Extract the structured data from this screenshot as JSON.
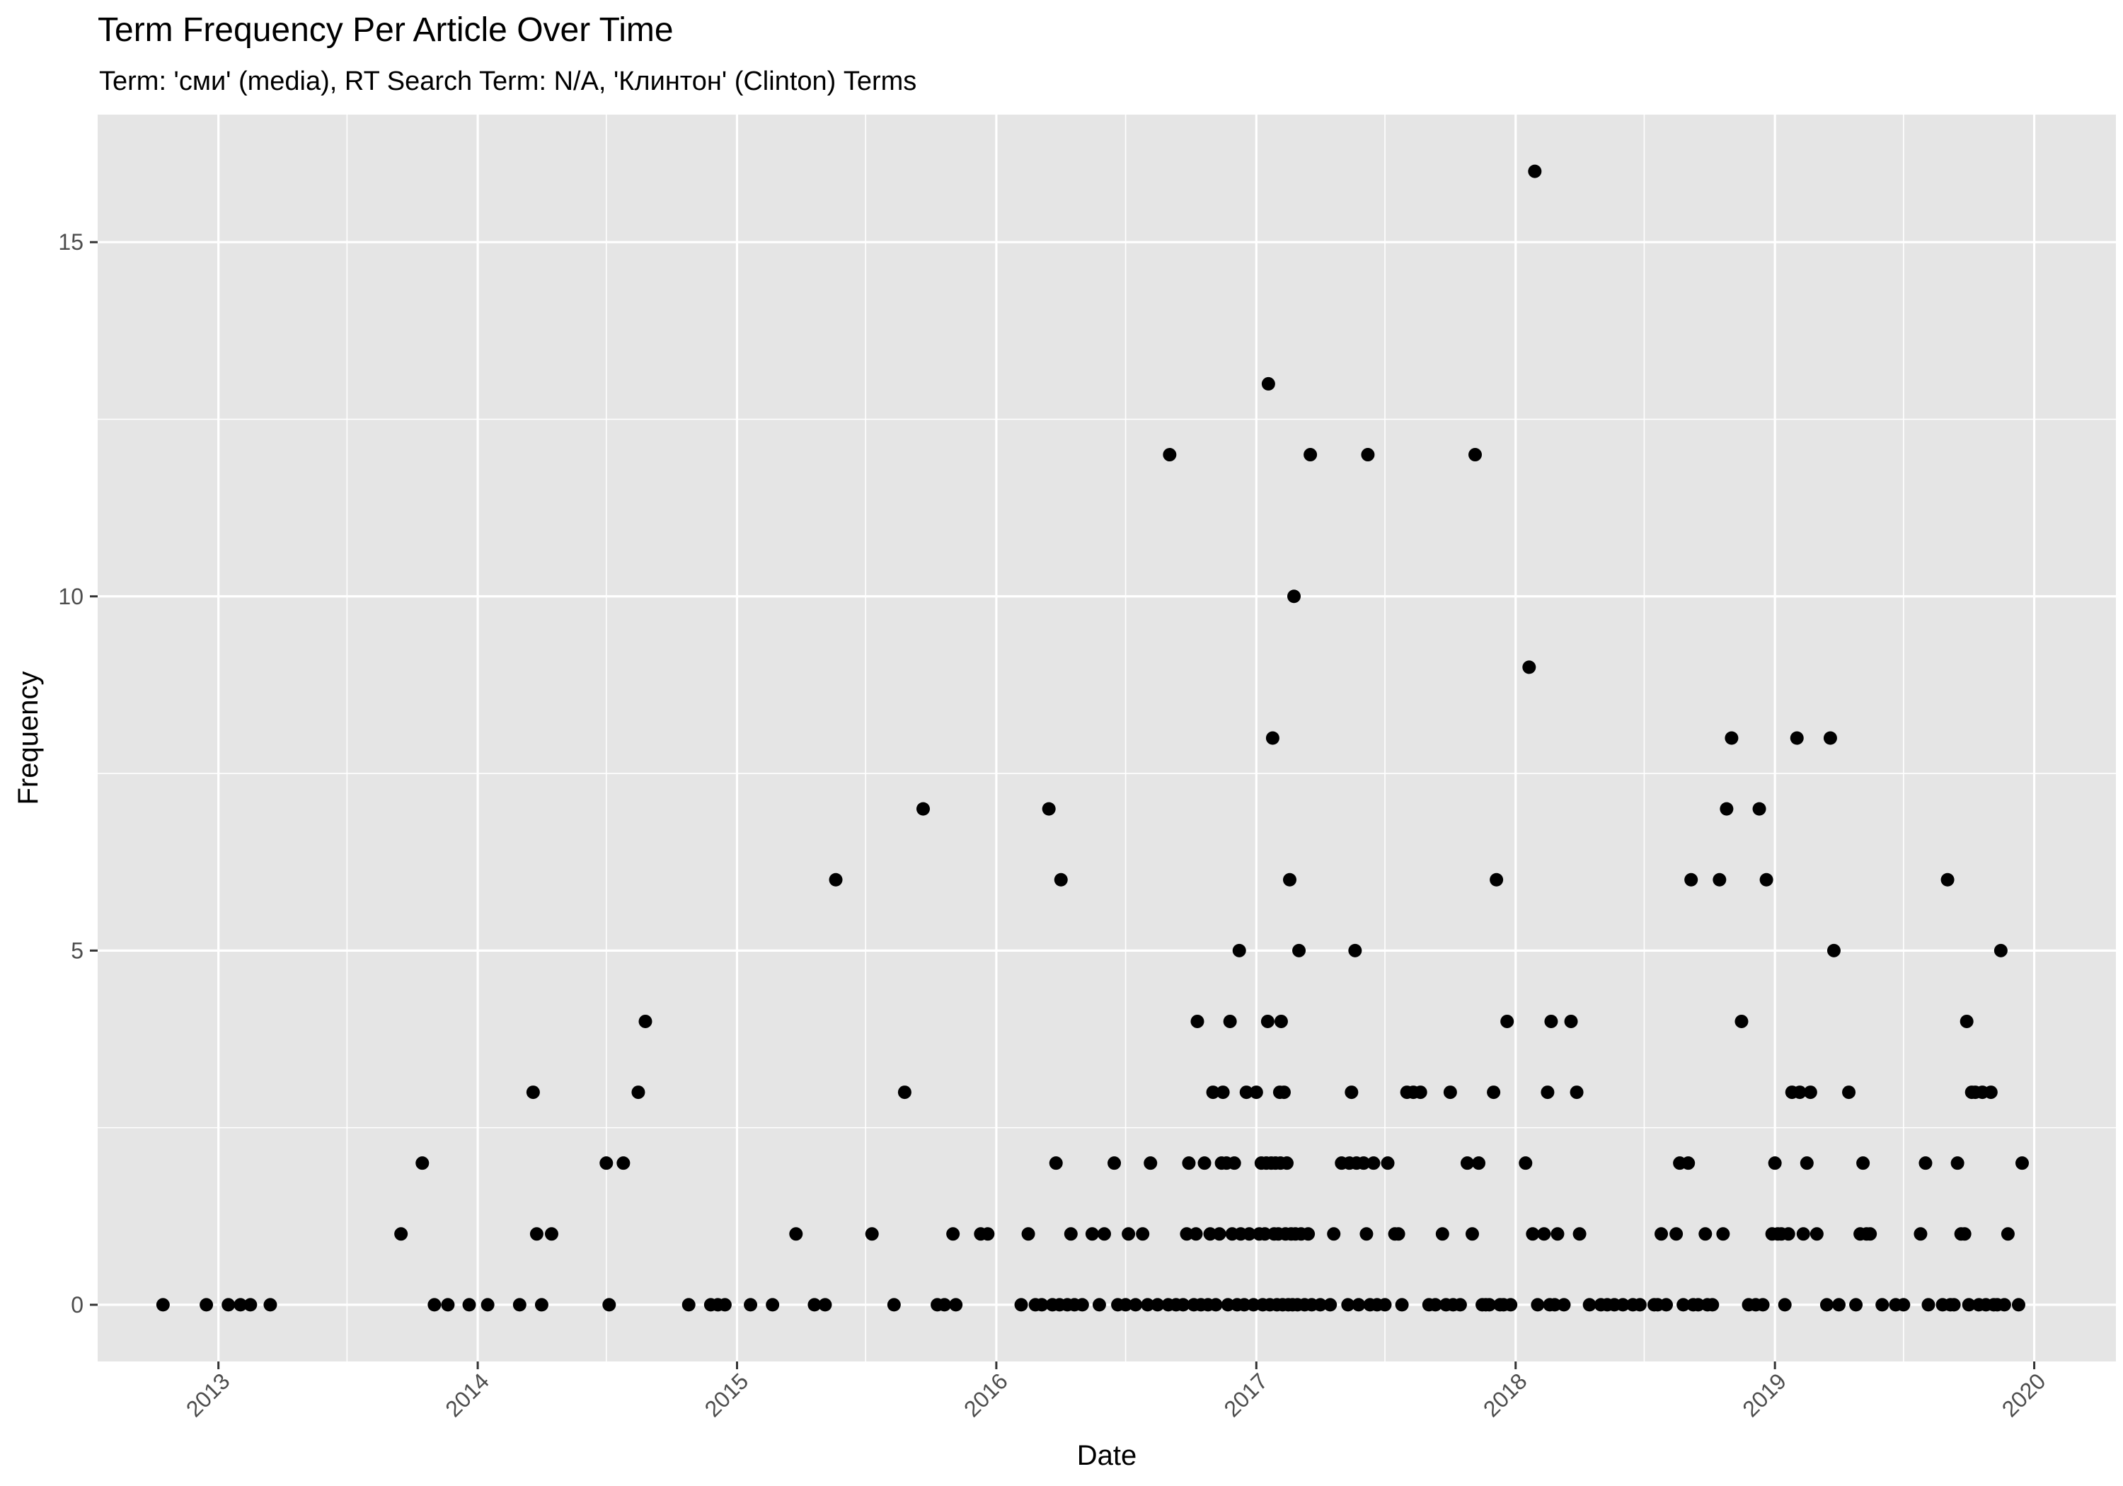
{
  "chart_data": {
    "type": "scatter",
    "title": "Term Frequency Per Article Over Time",
    "subtitle": "Term: 'сми' (media), RT Search Term: N/A, 'Клинтон' (Clinton) Terms",
    "xlabel": "Date",
    "ylabel": "Frequency",
    "x_type": "date",
    "xlim": [
      "2012-07-15",
      "2020-04-25"
    ],
    "ylim": [
      -0.8,
      16.8
    ],
    "x_ticks": [
      "2013",
      "2014",
      "2015",
      "2016",
      "2017",
      "2018",
      "2019",
      "2020"
    ],
    "y_ticks": [
      0,
      5,
      10,
      15
    ],
    "grid": true,
    "legend": "none",
    "background_color": "#e5e5e5",
    "point_color": "#000000",
    "points": [
      [
        "2012-10-15",
        0
      ],
      [
        "2012-12-15",
        0
      ],
      [
        "2013-01-15",
        0
      ],
      [
        "2013-02-01",
        0
      ],
      [
        "2013-02-15",
        0
      ],
      [
        "2013-03-15",
        0
      ],
      [
        "2013-09-15",
        1
      ],
      [
        "2013-10-15",
        2
      ],
      [
        "2013-11-01",
        0
      ],
      [
        "2013-11-20",
        0
      ],
      [
        "2013-12-20",
        0
      ],
      [
        "2014-01-15",
        0
      ],
      [
        "2014-03-01",
        0
      ],
      [
        "2014-03-20",
        3
      ],
      [
        "2014-03-25",
        1
      ],
      [
        "2014-04-01",
        0
      ],
      [
        "2014-04-15",
        1
      ],
      [
        "2014-07-01",
        2
      ],
      [
        "2014-07-05",
        0
      ],
      [
        "2014-07-25",
        2
      ],
      [
        "2014-08-15",
        3
      ],
      [
        "2014-08-25",
        4
      ],
      [
        "2014-10-25",
        0
      ],
      [
        "2014-11-25",
        0
      ],
      [
        "2014-12-05",
        0
      ],
      [
        "2014-12-15",
        0
      ],
      [
        "2015-01-20",
        0
      ],
      [
        "2015-02-20",
        0
      ],
      [
        "2015-03-25",
        1
      ],
      [
        "2015-04-20",
        0
      ],
      [
        "2015-05-05",
        0
      ],
      [
        "2015-05-20",
        6
      ],
      [
        "2015-07-10",
        1
      ],
      [
        "2015-08-10",
        0
      ],
      [
        "2015-08-25",
        3
      ],
      [
        "2015-09-20",
        7
      ],
      [
        "2015-10-10",
        0
      ],
      [
        "2015-10-20",
        0
      ],
      [
        "2015-11-01",
        1
      ],
      [
        "2015-11-05",
        0
      ],
      [
        "2015-12-10",
        1
      ],
      [
        "2015-12-20",
        1
      ],
      [
        "2016-02-05",
        0
      ],
      [
        "2016-02-15",
        1
      ],
      [
        "2016-02-25",
        0
      ],
      [
        "2016-03-05",
        0
      ],
      [
        "2016-03-15",
        7
      ],
      [
        "2016-03-20",
        0
      ],
      [
        "2016-03-25",
        2
      ],
      [
        "2016-03-30",
        0
      ],
      [
        "2016-04-01",
        6
      ],
      [
        "2016-04-10",
        0
      ],
      [
        "2016-04-15",
        1
      ],
      [
        "2016-04-20",
        0
      ],
      [
        "2016-05-01",
        0
      ],
      [
        "2016-05-15",
        1
      ],
      [
        "2016-05-25",
        0
      ],
      [
        "2016-06-01",
        1
      ],
      [
        "2016-06-15",
        2
      ],
      [
        "2016-06-20",
        0
      ],
      [
        "2016-07-01",
        0
      ],
      [
        "2016-07-05",
        1
      ],
      [
        "2016-07-15",
        0
      ],
      [
        "2016-07-25",
        1
      ],
      [
        "2016-08-01",
        0
      ],
      [
        "2016-08-05",
        2
      ],
      [
        "2016-08-15",
        0
      ],
      [
        "2016-08-30",
        0
      ],
      [
        "2016-09-01",
        12
      ],
      [
        "2016-09-10",
        0
      ],
      [
        "2016-09-20",
        0
      ],
      [
        "2016-09-25",
        1
      ],
      [
        "2016-09-28",
        2
      ],
      [
        "2016-10-05",
        0
      ],
      [
        "2016-10-08",
        1
      ],
      [
        "2016-10-10",
        4
      ],
      [
        "2016-10-15",
        0
      ],
      [
        "2016-10-20",
        2
      ],
      [
        "2016-10-25",
        0
      ],
      [
        "2016-10-28",
        1
      ],
      [
        "2016-11-01",
        3
      ],
      [
        "2016-11-05",
        0
      ],
      [
        "2016-11-10",
        1
      ],
      [
        "2016-11-13",
        2
      ],
      [
        "2016-11-15",
        3
      ],
      [
        "2016-11-20",
        2
      ],
      [
        "2016-11-22",
        0
      ],
      [
        "2016-11-25",
        4
      ],
      [
        "2016-11-28",
        1
      ],
      [
        "2016-12-01",
        2
      ],
      [
        "2016-12-05",
        0
      ],
      [
        "2016-12-08",
        5
      ],
      [
        "2016-12-10",
        1
      ],
      [
        "2016-12-15",
        0
      ],
      [
        "2016-12-18",
        3
      ],
      [
        "2016-12-22",
        1
      ],
      [
        "2016-12-28",
        0
      ],
      [
        "2017-01-01",
        3
      ],
      [
        "2017-01-05",
        1
      ],
      [
        "2017-01-08",
        2
      ],
      [
        "2017-01-10",
        0
      ],
      [
        "2017-01-13",
        1
      ],
      [
        "2017-01-15",
        2
      ],
      [
        "2017-01-17",
        4
      ],
      [
        "2017-01-18",
        13
      ],
      [
        "2017-01-20",
        0
      ],
      [
        "2017-01-22",
        2
      ],
      [
        "2017-01-24",
        8
      ],
      [
        "2017-01-26",
        1
      ],
      [
        "2017-01-28",
        2
      ],
      [
        "2017-01-30",
        0
      ],
      [
        "2017-02-01",
        1
      ],
      [
        "2017-02-03",
        3
      ],
      [
        "2017-02-04",
        2
      ],
      [
        "2017-02-05",
        4
      ],
      [
        "2017-02-07",
        0
      ],
      [
        "2017-02-09",
        3
      ],
      [
        "2017-02-11",
        1
      ],
      [
        "2017-02-13",
        2
      ],
      [
        "2017-02-15",
        0
      ],
      [
        "2017-02-17",
        6
      ],
      [
        "2017-02-19",
        1
      ],
      [
        "2017-02-21",
        0
      ],
      [
        "2017-02-23",
        10
      ],
      [
        "2017-02-25",
        1
      ],
      [
        "2017-02-28",
        0
      ],
      [
        "2017-03-02",
        5
      ],
      [
        "2017-03-05",
        1
      ],
      [
        "2017-03-10",
        0
      ],
      [
        "2017-03-15",
        1
      ],
      [
        "2017-03-18",
        12
      ],
      [
        "2017-03-20",
        0
      ],
      [
        "2017-04-01",
        0
      ],
      [
        "2017-04-15",
        0
      ],
      [
        "2017-04-20",
        1
      ],
      [
        "2017-05-01",
        2
      ],
      [
        "2017-05-10",
        0
      ],
      [
        "2017-05-12",
        2
      ],
      [
        "2017-05-15",
        3
      ],
      [
        "2017-05-20",
        5
      ],
      [
        "2017-05-22",
        2
      ],
      [
        "2017-05-25",
        0
      ],
      [
        "2017-06-01",
        2
      ],
      [
        "2017-06-05",
        1
      ],
      [
        "2017-06-07",
        12
      ],
      [
        "2017-06-10",
        0
      ],
      [
        "2017-06-15",
        2
      ],
      [
        "2017-06-20",
        0
      ],
      [
        "2017-07-01",
        0
      ],
      [
        "2017-07-05",
        2
      ],
      [
        "2017-07-15",
        1
      ],
      [
        "2017-07-20",
        1
      ],
      [
        "2017-07-25",
        0
      ],
      [
        "2017-08-01",
        3
      ],
      [
        "2017-08-10",
        3
      ],
      [
        "2017-08-20",
        3
      ],
      [
        "2017-09-01",
        0
      ],
      [
        "2017-09-10",
        0
      ],
      [
        "2017-09-20",
        1
      ],
      [
        "2017-09-25",
        0
      ],
      [
        "2017-10-01",
        3
      ],
      [
        "2017-10-05",
        0
      ],
      [
        "2017-10-15",
        0
      ],
      [
        "2017-10-25",
        2
      ],
      [
        "2017-11-01",
        1
      ],
      [
        "2017-11-05",
        12
      ],
      [
        "2017-11-10",
        2
      ],
      [
        "2017-11-15",
        0
      ],
      [
        "2017-11-20",
        0
      ],
      [
        "2017-11-25",
        0
      ],
      [
        "2017-12-01",
        3
      ],
      [
        "2017-12-05",
        6
      ],
      [
        "2017-12-10",
        0
      ],
      [
        "2017-12-15",
        0
      ],
      [
        "2017-12-20",
        4
      ],
      [
        "2017-12-25",
        0
      ],
      [
        "2018-01-15",
        2
      ],
      [
        "2018-01-25",
        1
      ],
      [
        "2018-02-01",
        0
      ],
      [
        "2018-01-20",
        9
      ],
      [
        "2018-01-28",
        16
      ],
      [
        "2018-02-10",
        1
      ],
      [
        "2018-02-15",
        3
      ],
      [
        "2018-02-18",
        0
      ],
      [
        "2018-02-20",
        4
      ],
      [
        "2018-02-25",
        0
      ],
      [
        "2018-03-01",
        1
      ],
      [
        "2018-03-10",
        0
      ],
      [
        "2018-03-20",
        4
      ],
      [
        "2018-03-28",
        3
      ],
      [
        "2018-04-01",
        1
      ],
      [
        "2018-04-15",
        0
      ],
      [
        "2018-05-01",
        0
      ],
      [
        "2018-05-10",
        0
      ],
      [
        "2018-05-20",
        0
      ],
      [
        "2018-06-01",
        0
      ],
      [
        "2018-06-15",
        0
      ],
      [
        "2018-06-25",
        0
      ],
      [
        "2018-07-15",
        0
      ],
      [
        "2018-07-20",
        0
      ],
      [
        "2018-07-25",
        1
      ],
      [
        "2018-08-01",
        0
      ],
      [
        "2018-08-15",
        1
      ],
      [
        "2018-08-20",
        2
      ],
      [
        "2018-08-25",
        0
      ],
      [
        "2018-09-01",
        2
      ],
      [
        "2018-09-05",
        6
      ],
      [
        "2018-09-08",
        0
      ],
      [
        "2018-09-15",
        0
      ],
      [
        "2018-09-25",
        1
      ],
      [
        "2018-09-28",
        0
      ],
      [
        "2018-10-05",
        0
      ],
      [
        "2018-10-15",
        6
      ],
      [
        "2018-10-20",
        1
      ],
      [
        "2018-10-25",
        7
      ],
      [
        "2018-11-01",
        8
      ],
      [
        "2018-11-15",
        4
      ],
      [
        "2018-11-25",
        0
      ],
      [
        "2018-12-05",
        0
      ],
      [
        "2018-12-10",
        7
      ],
      [
        "2018-12-15",
        0
      ],
      [
        "2018-12-20",
        6
      ],
      [
        "2018-12-28",
        1
      ],
      [
        "2019-01-01",
        2
      ],
      [
        "2019-01-05",
        1
      ],
      [
        "2019-01-10",
        1
      ],
      [
        "2019-01-15",
        0
      ],
      [
        "2019-01-20",
        1
      ],
      [
        "2019-01-25",
        3
      ],
      [
        "2019-02-01",
        8
      ],
      [
        "2019-02-05",
        3
      ],
      [
        "2019-02-10",
        1
      ],
      [
        "2019-02-15",
        2
      ],
      [
        "2019-02-20",
        3
      ],
      [
        "2019-03-01",
        1
      ],
      [
        "2019-03-15",
        0
      ],
      [
        "2019-03-20",
        8
      ],
      [
        "2019-03-25",
        5
      ],
      [
        "2019-04-01",
        0
      ],
      [
        "2019-04-15",
        3
      ],
      [
        "2019-04-25",
        0
      ],
      [
        "2019-05-01",
        1
      ],
      [
        "2019-05-05",
        2
      ],
      [
        "2019-05-10",
        1
      ],
      [
        "2019-05-15",
        1
      ],
      [
        "2019-06-01",
        0
      ],
      [
        "2019-06-20",
        0
      ],
      [
        "2019-07-01",
        0
      ],
      [
        "2019-07-25",
        1
      ],
      [
        "2019-08-01",
        2
      ],
      [
        "2019-08-05",
        0
      ],
      [
        "2019-08-25",
        0
      ],
      [
        "2019-09-01",
        6
      ],
      [
        "2019-09-05",
        0
      ],
      [
        "2019-09-10",
        0
      ],
      [
        "2019-09-15",
        2
      ],
      [
        "2019-09-20",
        1
      ],
      [
        "2019-09-25",
        1
      ],
      [
        "2019-09-28",
        4
      ],
      [
        "2019-10-01",
        0
      ],
      [
        "2019-10-05",
        3
      ],
      [
        "2019-10-10",
        3
      ],
      [
        "2019-10-15",
        0
      ],
      [
        "2019-10-20",
        3
      ],
      [
        "2019-10-25",
        0
      ],
      [
        "2019-11-01",
        3
      ],
      [
        "2019-11-05",
        0
      ],
      [
        "2019-11-10",
        0
      ],
      [
        "2019-11-15",
        5
      ],
      [
        "2019-11-20",
        0
      ],
      [
        "2019-11-25",
        1
      ],
      [
        "2019-12-10",
        0
      ],
      [
        "2019-12-15",
        2
      ]
    ]
  }
}
